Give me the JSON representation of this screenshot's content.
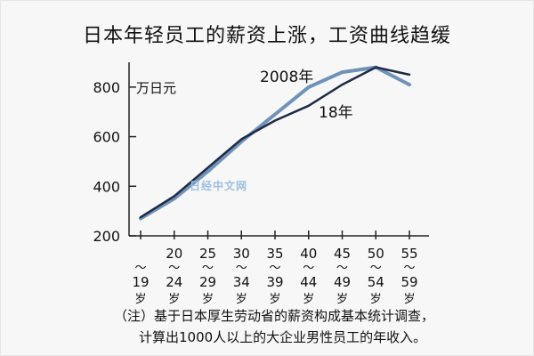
{
  "header": {
    "title": "日本年轻员工的薪资上涨，工资曲线趋缓"
  },
  "watermark": "日经中文网",
  "notes": {
    "line1": "（注）基于日本厚生劳动省的薪资构成基本统计调查，",
    "line2": "计算出1000人以上的大企业男性员工的年收入。"
  },
  "chart_data": {
    "type": "line",
    "title": "日本年轻员工的薪资上涨，工资曲线趋缓",
    "ylabel": "万日元",
    "ylim": [
      200,
      900
    ],
    "yticks": [
      200,
      400,
      600,
      800
    ],
    "categories": [
      {
        "top": "",
        "mid": "〜",
        "bot": "19",
        "unit": "岁"
      },
      {
        "top": "20",
        "mid": "〜",
        "bot": "24",
        "unit": "岁"
      },
      {
        "top": "25",
        "mid": "〜",
        "bot": "29",
        "unit": "岁"
      },
      {
        "top": "30",
        "mid": "〜",
        "bot": "34",
        "unit": "岁"
      },
      {
        "top": "35",
        "mid": "〜",
        "bot": "39",
        "unit": "岁"
      },
      {
        "top": "40",
        "mid": "〜",
        "bot": "44",
        "unit": "岁"
      },
      {
        "top": "45",
        "mid": "〜",
        "bot": "49",
        "unit": "岁"
      },
      {
        "top": "50",
        "mid": "〜",
        "bot": "54",
        "unit": "岁"
      },
      {
        "top": "55",
        "mid": "〜",
        "bot": "59",
        "unit": "岁"
      }
    ],
    "series": [
      {
        "name": "2008年",
        "color": "#6f93b8",
        "values": [
          270,
          350,
          460,
          580,
          690,
          800,
          860,
          880,
          810
        ]
      },
      {
        "name": "18年",
        "color": "#1f2a44",
        "values": [
          275,
          360,
          475,
          590,
          665,
          725,
          810,
          880,
          850
        ]
      }
    ],
    "grid": false
  }
}
